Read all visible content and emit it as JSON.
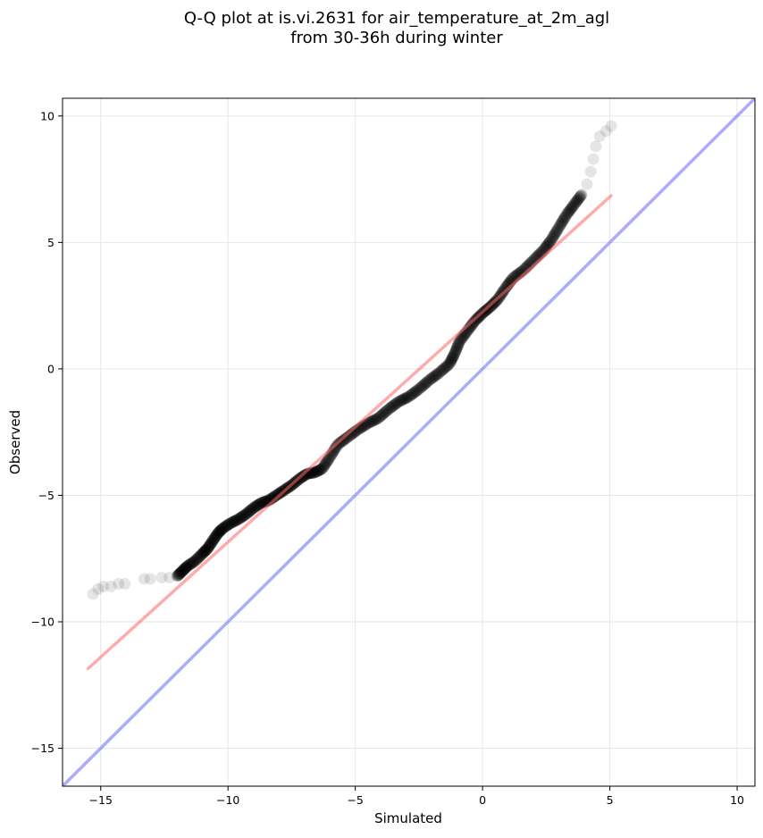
{
  "chart_data": {
    "type": "scatter",
    "title": "Q-Q plot at is.vi.2631 for air_temperature_at_2m_agl",
    "subtitle": "from 30-36h during winter",
    "xlabel": "Simulated",
    "ylabel": "Observed",
    "xlim": [
      -16.5,
      10.7
    ],
    "ylim": [
      -16.5,
      10.7
    ],
    "xticks": [
      -15,
      -10,
      -5,
      0,
      5,
      10
    ],
    "yticks": [
      -15,
      -10,
      -5,
      0,
      5,
      10
    ],
    "xtick_labels": [
      "−15",
      "−10",
      "−5",
      "0",
      "5",
      "10"
    ],
    "ytick_labels": [
      "−15",
      "−10",
      "−5",
      "0",
      "5",
      "10"
    ],
    "grid": true,
    "series": [
      {
        "kind": "scatter",
        "color": "#000000",
        "opacity": 0.1,
        "points": [
          [
            -15.3,
            -8.9
          ],
          [
            -15.1,
            -8.7
          ],
          [
            -14.9,
            -8.6
          ],
          [
            -14.6,
            -8.6
          ],
          [
            -14.3,
            -8.5
          ],
          [
            -14.05,
            -8.5
          ],
          [
            -13.3,
            -8.3
          ],
          [
            -13.05,
            -8.3
          ],
          [
            -12.6,
            -8.25
          ],
          [
            -12.3,
            -8.25
          ],
          [
            -12.0,
            -8.2
          ],
          [
            -11.8,
            -8.0
          ],
          [
            -11.6,
            -7.8
          ],
          [
            -11.3,
            -7.6
          ],
          [
            -11.0,
            -7.3
          ],
          [
            -10.8,
            -7.1
          ],
          [
            -10.6,
            -6.8
          ],
          [
            -10.4,
            -6.5
          ],
          [
            -10.2,
            -6.3
          ],
          [
            -9.9,
            -6.1
          ],
          [
            -9.6,
            -5.95
          ],
          [
            -9.3,
            -5.75
          ],
          [
            -9.0,
            -5.5
          ],
          [
            -8.7,
            -5.3
          ],
          [
            -8.4,
            -5.2
          ],
          [
            -8.1,
            -5.0
          ],
          [
            -7.8,
            -4.8
          ],
          [
            -7.5,
            -4.6
          ],
          [
            -7.2,
            -4.35
          ],
          [
            -6.9,
            -4.15
          ],
          [
            -6.6,
            -4.1
          ],
          [
            -6.3,
            -3.95
          ],
          [
            -6.0,
            -3.5
          ],
          [
            -5.7,
            -3.0
          ],
          [
            -5.3,
            -2.7
          ],
          [
            -4.9,
            -2.4
          ],
          [
            -4.5,
            -2.15
          ],
          [
            -4.1,
            -1.95
          ],
          [
            -3.7,
            -1.6
          ],
          [
            -3.3,
            -1.3
          ],
          [
            -2.9,
            -1.1
          ],
          [
            -2.5,
            -0.8
          ],
          [
            -2.1,
            -0.45
          ],
          [
            -1.7,
            -0.15
          ],
          [
            -1.3,
            0.2
          ],
          [
            -1.1,
            0.6
          ],
          [
            -0.9,
            1.1
          ],
          [
            -0.6,
            1.5
          ],
          [
            -0.3,
            1.9
          ],
          [
            0.0,
            2.2
          ],
          [
            0.3,
            2.45
          ],
          [
            0.6,
            2.75
          ],
          [
            0.9,
            3.2
          ],
          [
            1.2,
            3.6
          ],
          [
            1.6,
            3.9
          ],
          [
            2.0,
            4.3
          ],
          [
            2.4,
            4.7
          ],
          [
            2.7,
            5.1
          ],
          [
            3.0,
            5.6
          ],
          [
            3.3,
            6.1
          ],
          [
            3.6,
            6.5
          ],
          [
            3.9,
            6.9
          ],
          [
            4.1,
            7.3
          ],
          [
            4.25,
            7.8
          ],
          [
            4.35,
            8.3
          ],
          [
            4.45,
            8.8
          ],
          [
            4.6,
            9.2
          ],
          [
            4.85,
            9.4
          ],
          [
            5.05,
            9.6
          ]
        ]
      },
      {
        "kind": "line",
        "name": "",
        "color": "#ff6666",
        "opacity": 0.55,
        "x": [
          -15.5,
          5.05
        ],
        "y": [
          -11.85,
          6.85
        ]
      },
      {
        "kind": "line",
        "name": "",
        "color": "#6666ff",
        "opacity": 0.55,
        "x": [
          -16.5,
          10.7
        ],
        "y": [
          -16.5,
          10.7
        ]
      }
    ]
  }
}
